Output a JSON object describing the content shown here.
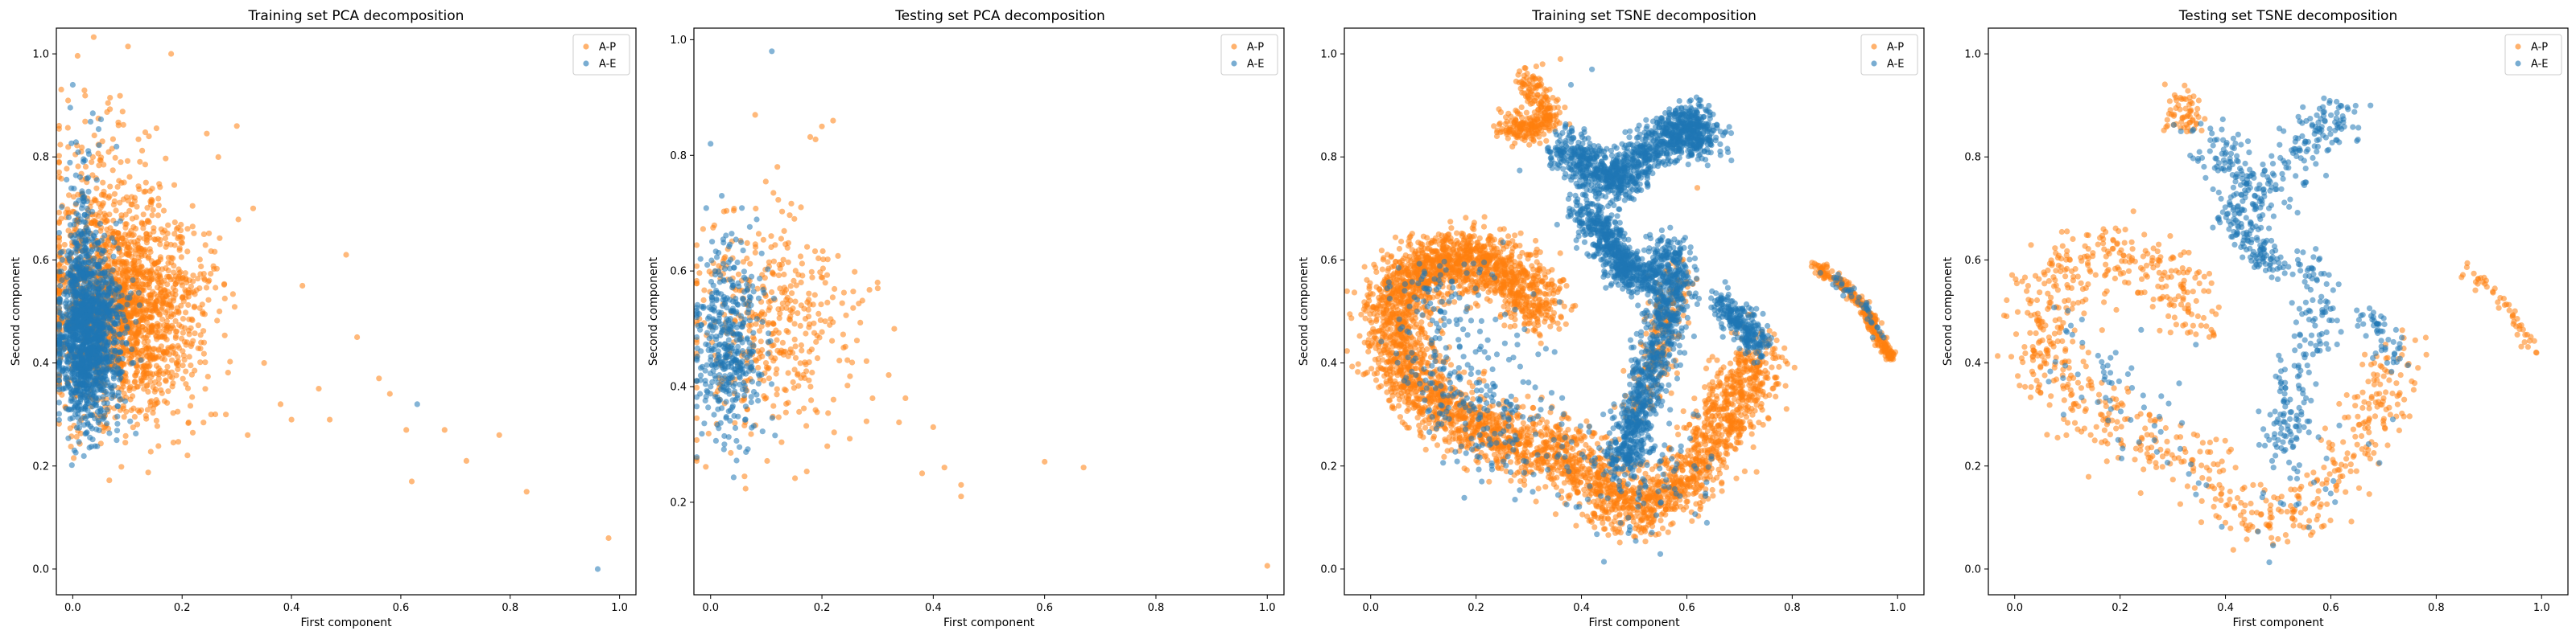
{
  "chart_data": [
    {
      "type": "scatter",
      "title": "Training set PCA decomposition",
      "xlabel": "First component",
      "ylabel": "Second component",
      "xlim": [
        -0.03,
        1.03
      ],
      "ylim": [
        -0.05,
        1.05
      ],
      "xticks": [
        "0.0",
        "0.2",
        "0.4",
        "0.6",
        "0.8",
        "1.0"
      ],
      "yticks": [
        "0.0",
        "0.2",
        "0.4",
        "0.6",
        "0.8",
        "1.0"
      ],
      "legend_position": "top-right",
      "legend": [
        "A-P",
        "A-E"
      ],
      "series": [
        {
          "name": "A-P",
          "color": "#ff7f0e",
          "clusters": [
            {
              "n": 1500,
              "cx": 0.1,
              "cy": 0.5,
              "sx": 0.07,
              "sy": 0.1
            },
            {
              "n": 400,
              "cx": 0.05,
              "cy": 0.62,
              "sx": 0.05,
              "sy": 0.14
            }
          ],
          "points": [
            [
              0.3,
              0.86
            ],
            [
              0.24,
              0.65
            ],
            [
              0.33,
              0.7
            ],
            [
              0.42,
              0.55
            ],
            [
              0.5,
              0.61
            ],
            [
              0.52,
              0.45
            ],
            [
              0.56,
              0.37
            ],
            [
              0.58,
              0.34
            ],
            [
              0.61,
              0.27
            ],
            [
              0.62,
              0.17
            ],
            [
              0.68,
              0.27
            ],
            [
              0.72,
              0.21
            ],
            [
              0.78,
              0.26
            ],
            [
              0.83,
              0.15
            ],
            [
              0.98,
              0.06
            ],
            [
              0.18,
              1.0
            ],
            [
              0.45,
              0.35
            ],
            [
              0.35,
              0.4
            ],
            [
              0.38,
              0.32
            ],
            [
              0.4,
              0.29
            ],
            [
              0.32,
              0.26
            ],
            [
              0.28,
              0.3
            ],
            [
              0.47,
              0.29
            ]
          ]
        },
        {
          "name": "A-E",
          "color": "#1f77b4",
          "clusters": [
            {
              "n": 1300,
              "cx": 0.03,
              "cy": 0.45,
              "sx": 0.03,
              "sy": 0.08
            },
            {
              "n": 300,
              "cx": 0.02,
              "cy": 0.55,
              "sx": 0.015,
              "sy": 0.13
            }
          ],
          "points": [
            [
              0.0,
              0.94
            ],
            [
              0.63,
              0.32
            ],
            [
              0.96,
              0.0
            ],
            [
              0.08,
              0.82
            ]
          ]
        }
      ]
    },
    {
      "type": "scatter",
      "title": "Testing set PCA decomposition",
      "xlabel": "First component",
      "ylabel": "Second component",
      "xlim": [
        -0.03,
        1.03
      ],
      "ylim": [
        0.04,
        1.02
      ],
      "xticks": [
        "0.0",
        "0.2",
        "0.4",
        "0.6",
        "0.8",
        "1.0"
      ],
      "yticks": [
        "0.2",
        "0.4",
        "0.6",
        "0.8",
        "1.0"
      ],
      "legend_position": "top-right",
      "legend": [
        "A-P",
        "A-E"
      ],
      "series": [
        {
          "name": "A-P",
          "color": "#ff7f0e",
          "clusters": [
            {
              "n": 420,
              "cx": 0.1,
              "cy": 0.5,
              "sx": 0.07,
              "sy": 0.1
            }
          ],
          "points": [
            [
              0.08,
              0.87
            ],
            [
              0.2,
              0.85
            ],
            [
              0.22,
              0.86
            ],
            [
              0.12,
              0.78
            ],
            [
              0.3,
              0.58
            ],
            [
              0.33,
              0.5
            ],
            [
              0.35,
              0.38
            ],
            [
              0.4,
              0.33
            ],
            [
              0.42,
              0.26
            ],
            [
              0.45,
              0.23
            ],
            [
              0.45,
              0.21
            ],
            [
              0.38,
              0.25
            ],
            [
              0.6,
              0.27
            ],
            [
              0.67,
              0.26
            ],
            [
              1.0,
              0.09
            ],
            [
              0.28,
              0.34
            ],
            [
              0.25,
              0.31
            ],
            [
              0.32,
              0.42
            ]
          ]
        },
        {
          "name": "A-E",
          "color": "#1f77b4",
          "clusters": [
            {
              "n": 420,
              "cx": 0.03,
              "cy": 0.47,
              "sx": 0.03,
              "sy": 0.08
            }
          ],
          "points": [
            [
              0.11,
              0.98
            ],
            [
              0.0,
              0.82
            ],
            [
              0.02,
              0.73
            ]
          ]
        }
      ]
    },
    {
      "type": "scatter",
      "title": "Training set TSNE decomposition",
      "xlabel": "First component",
      "ylabel": "Second component",
      "xlim": [
        -0.05,
        1.05
      ],
      "ylim": [
        -0.05,
        1.05
      ],
      "xticks": [
        "0.0",
        "0.2",
        "0.4",
        "0.6",
        "0.8",
        "1.0"
      ],
      "yticks": [
        "0.0",
        "0.2",
        "0.4",
        "0.6",
        "0.8",
        "1.0"
      ],
      "legend_position": "top-right",
      "legend": [
        "A-P",
        "A-E"
      ],
      "series": [
        {
          "name": "A-P",
          "color": "#ff7f0e",
          "paths": [
            {
              "n": 2600,
              "w": 0.065,
              "pts": [
                [
                  0.38,
                  0.23
                ],
                [
                  0.28,
                  0.24
                ],
                [
                  0.18,
                  0.28
                ],
                [
                  0.1,
                  0.34
                ],
                [
                  0.05,
                  0.42
                ],
                [
                  0.04,
                  0.5
                ],
                [
                  0.08,
                  0.57
                ],
                [
                  0.15,
                  0.6
                ],
                [
                  0.22,
                  0.6
                ],
                [
                  0.28,
                  0.56
                ],
                [
                  0.33,
                  0.5
                ]
              ]
            },
            {
              "n": 1300,
              "w": 0.06,
              "pts": [
                [
                  0.38,
                  0.23
                ],
                [
                  0.44,
                  0.14
                ],
                [
                  0.52,
                  0.12
                ],
                [
                  0.6,
                  0.17
                ],
                [
                  0.66,
                  0.26
                ],
                [
                  0.7,
                  0.34
                ],
                [
                  0.74,
                  0.42
                ]
              ]
            },
            {
              "n": 300,
              "w": 0.03,
              "pts": [
                [
                  0.3,
                  0.95
                ],
                [
                  0.34,
                  0.88
                ],
                [
                  0.3,
                  0.85
                ],
                [
                  0.26,
                  0.86
                ]
              ]
            },
            {
              "n": 280,
              "w": 0.012,
              "pts": [
                [
                  0.84,
                  0.59
                ],
                [
                  0.9,
                  0.55
                ],
                [
                  0.94,
                  0.5
                ],
                [
                  0.97,
                  0.44
                ],
                [
                  0.99,
                  0.41
                ]
              ]
            },
            {
              "n": 200,
              "w": 0.035,
              "pts": [
                [
                  0.5,
                  0.3
                ],
                [
                  0.54,
                  0.4
                ],
                [
                  0.56,
                  0.5
                ],
                [
                  0.58,
                  0.58
                ]
              ]
            }
          ],
          "points": [
            [
              0.3,
              0.5
            ],
            [
              0.33,
              0.48
            ],
            [
              0.36,
              0.99
            ],
            [
              0.62,
              0.74
            ]
          ]
        },
        {
          "name": "A-E",
          "color": "#1f77b4",
          "paths": [
            {
              "n": 1200,
              "w": 0.045,
              "pts": [
                [
                  0.36,
                  0.82
                ],
                [
                  0.42,
                  0.78
                ],
                [
                  0.47,
                  0.74
                ],
                [
                  0.51,
                  0.8
                ],
                [
                  0.57,
                  0.84
                ],
                [
                  0.61,
                  0.87
                ],
                [
                  0.63,
                  0.82
                ]
              ]
            },
            {
              "n": 600,
              "w": 0.035,
              "pts": [
                [
                  0.4,
                  0.7
                ],
                [
                  0.45,
                  0.64
                ],
                [
                  0.48,
                  0.58
                ],
                [
                  0.53,
                  0.56
                ]
              ]
            },
            {
              "n": 900,
              "w": 0.04,
              "pts": [
                [
                  0.56,
                  0.63
                ],
                [
                  0.58,
                  0.55
                ],
                [
                  0.55,
                  0.45
                ],
                [
                  0.52,
                  0.35
                ],
                [
                  0.5,
                  0.27
                ],
                [
                  0.48,
                  0.2
                ]
              ]
            },
            {
              "n": 250,
              "w": 0.03,
              "pts": [
                [
                  0.66,
                  0.52
                ],
                [
                  0.71,
                  0.47
                ],
                [
                  0.74,
                  0.42
                ]
              ]
            },
            {
              "n": 400,
              "w": 0.1,
              "pts": [
                [
                  0.3,
                  0.22
                ],
                [
                  0.2,
                  0.3
                ],
                [
                  0.1,
                  0.4
                ],
                [
                  0.15,
                  0.58
                ],
                [
                  0.45,
                  0.12
                ],
                [
                  0.62,
                  0.22
                ]
              ]
            },
            {
              "n": 40,
              "w": 0.012,
              "pts": [
                [
                  0.86,
                  0.58
                ],
                [
                  0.93,
                  0.52
                ],
                [
                  0.97,
                  0.45
                ]
              ]
            }
          ],
          "points": [
            [
              0.38,
              0.94
            ],
            [
              0.42,
              0.97
            ]
          ]
        }
      ]
    },
    {
      "type": "scatter",
      "title": "Testing set TSNE decomposition",
      "xlabel": "First component",
      "ylabel": "Second component",
      "xlim": [
        -0.05,
        1.05
      ],
      "ylim": [
        -0.05,
        1.05
      ],
      "xticks": [
        "0.0",
        "0.2",
        "0.4",
        "0.6",
        "0.8",
        "1.0"
      ],
      "yticks": [
        "0.0",
        "0.2",
        "0.4",
        "0.6",
        "0.8",
        "1.0"
      ],
      "legend_position": "top-right",
      "legend": [
        "A-P",
        "A-E"
      ],
      "series": [
        {
          "name": "A-P",
          "color": "#ff7f0e",
          "paths": [
            {
              "n": 520,
              "w": 0.07,
              "pts": [
                [
                  0.38,
                  0.2
                ],
                [
                  0.28,
                  0.24
                ],
                [
                  0.18,
                  0.28
                ],
                [
                  0.1,
                  0.35
                ],
                [
                  0.05,
                  0.43
                ],
                [
                  0.05,
                  0.5
                ],
                [
                  0.1,
                  0.57
                ],
                [
                  0.17,
                  0.61
                ],
                [
                  0.24,
                  0.6
                ],
                [
                  0.3,
                  0.55
                ],
                [
                  0.34,
                  0.49
                ]
              ]
            },
            {
              "n": 260,
              "w": 0.06,
              "pts": [
                [
                  0.38,
                  0.2
                ],
                [
                  0.45,
                  0.1
                ],
                [
                  0.53,
                  0.1
                ],
                [
                  0.6,
                  0.16
                ],
                [
                  0.66,
                  0.26
                ],
                [
                  0.7,
                  0.34
                ],
                [
                  0.74,
                  0.42
                ]
              ]
            },
            {
              "n": 60,
              "w": 0.03,
              "pts": [
                [
                  0.3,
                  0.92
                ],
                [
                  0.34,
                  0.88
                ],
                [
                  0.3,
                  0.86
                ]
              ]
            },
            {
              "n": 50,
              "w": 0.012,
              "pts": [
                [
                  0.84,
                  0.59
                ],
                [
                  0.9,
                  0.55
                ],
                [
                  0.95,
                  0.48
                ],
                [
                  0.99,
                  0.42
                ]
              ]
            }
          ],
          "points": []
        },
        {
          "name": "A-E",
          "color": "#1f77b4",
          "paths": [
            {
              "n": 260,
              "w": 0.05,
              "pts": [
                [
                  0.36,
                  0.84
                ],
                [
                  0.42,
                  0.78
                ],
                [
                  0.47,
                  0.72
                ],
                [
                  0.52,
                  0.79
                ],
                [
                  0.58,
                  0.85
                ],
                [
                  0.61,
                  0.88
                ]
              ]
            },
            {
              "n": 130,
              "w": 0.035,
              "pts": [
                [
                  0.4,
                  0.7
                ],
                [
                  0.45,
                  0.64
                ],
                [
                  0.5,
                  0.58
                ]
              ]
            },
            {
              "n": 180,
              "w": 0.045,
              "pts": [
                [
                  0.56,
                  0.62
                ],
                [
                  0.58,
                  0.52
                ],
                [
                  0.55,
                  0.42
                ],
                [
                  0.52,
                  0.32
                ],
                [
                  0.5,
                  0.22
                ]
              ]
            },
            {
              "n": 50,
              "w": 0.03,
              "pts": [
                [
                  0.66,
                  0.5
                ],
                [
                  0.7,
                  0.46
                ],
                [
                  0.72,
                  0.4
                ]
              ]
            },
            {
              "n": 90,
              "w": 0.1,
              "pts": [
                [
                  0.3,
                  0.22
                ],
                [
                  0.2,
                  0.32
                ],
                [
                  0.12,
                  0.45
                ],
                [
                  0.45,
                  0.12
                ],
                [
                  0.62,
                  0.22
                ]
              ]
            }
          ],
          "points": []
        }
      ]
    }
  ]
}
